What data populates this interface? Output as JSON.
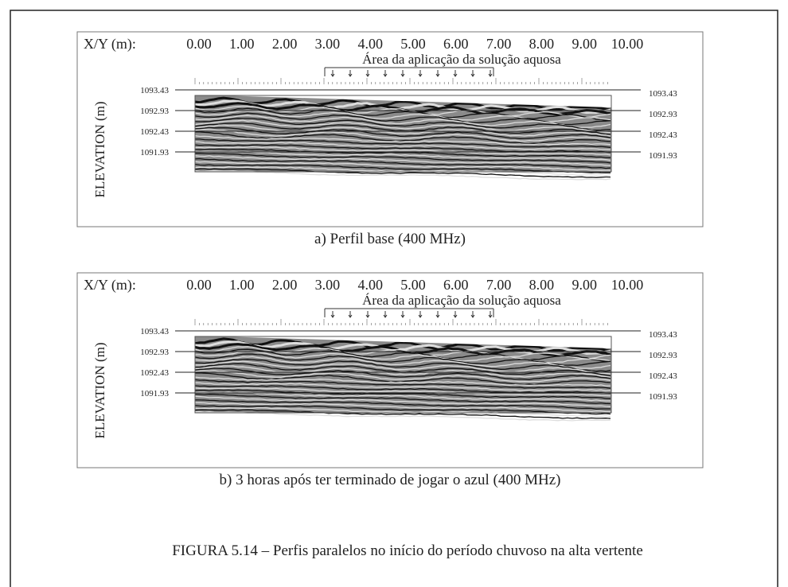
{
  "panels": [
    {
      "x_label": "X/Y (m):",
      "x_ticks": [
        "0.00",
        "1.00",
        "2.00",
        "3.00",
        "4.00",
        "5.00",
        "6.00",
        "7.00",
        "8.00",
        "9.00",
        "10.00"
      ],
      "area_label": "Área da aplicação da solução aquosa",
      "y_label": "ELEVATION (m)",
      "elevations_left": [
        "1093.43",
        "1092.93",
        "1092.43",
        "1091.93"
      ],
      "elevations_right": [
        "1093.43",
        "1092.93",
        "1092.43",
        "1091.93"
      ],
      "caption": "a) Perfil base (400 MHz)"
    },
    {
      "x_label": "X/Y (m):",
      "x_ticks": [
        "0.00",
        "1.00",
        "2.00",
        "3.00",
        "4.00",
        "5.00",
        "6.00",
        "7.00",
        "8.00",
        "9.00",
        "10.00"
      ],
      "area_label": "Área da aplicação da solução aquosa",
      "y_label": "ELEVATION (m)",
      "elevations_left": [
        "1093.43",
        "1092.93",
        "1092.43",
        "1091.93"
      ],
      "elevations_right": [
        "1093.43",
        "1092.93",
        "1092.43",
        "1091.93"
      ],
      "caption": "b) 3 horas após ter terminado de jogar o azul (400 MHz)"
    }
  ],
  "figure_caption": "FIGURA 5.14 – Perfis paralelos no início do período chuvoso na alta vertente"
}
